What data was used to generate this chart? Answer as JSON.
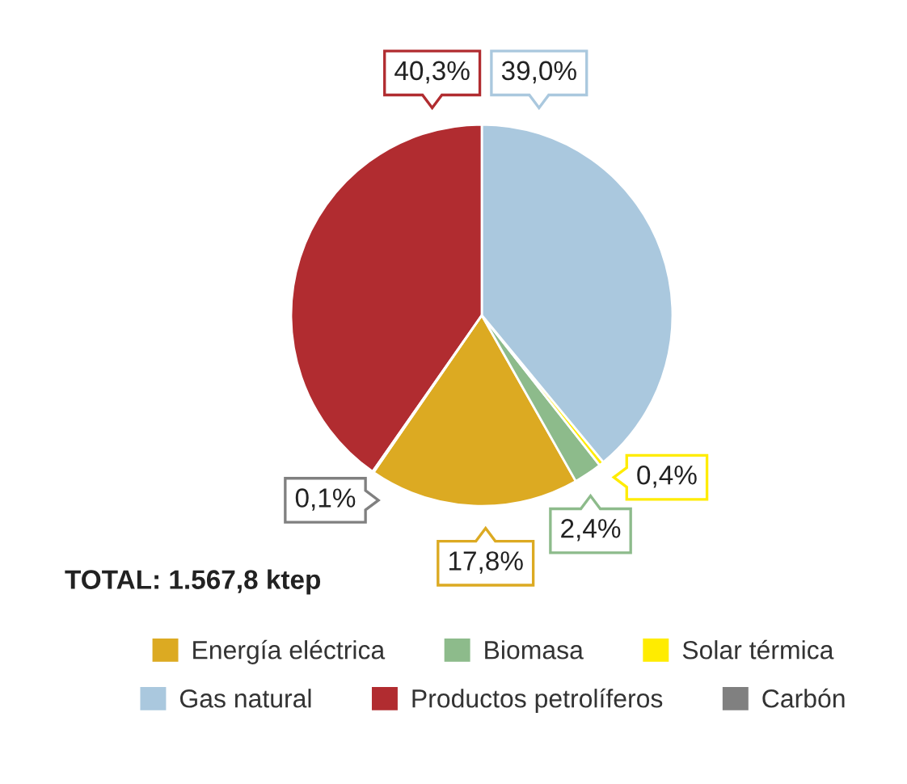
{
  "chart_data": {
    "type": "pie",
    "categories": [
      "Energía eléctrica",
      "Biomasa",
      "Solar térmica",
      "Gas natural",
      "Productos petrolíferos",
      "Carbón"
    ],
    "values": [
      17.8,
      2.4,
      0.4,
      39.0,
      40.3,
      0.1
    ],
    "colors": [
      "#dcaa22",
      "#8dbb8b",
      "#ffec00",
      "#aac8de",
      "#b12c30",
      "#808080"
    ],
    "value_labels": [
      "17,8%",
      "2,4%",
      "0,4%",
      "39,0%",
      "40,3%",
      "0,1%"
    ],
    "annotations": [
      "TOTAL: 1.567,8 ktep"
    ],
    "legend": "bottom"
  }
}
